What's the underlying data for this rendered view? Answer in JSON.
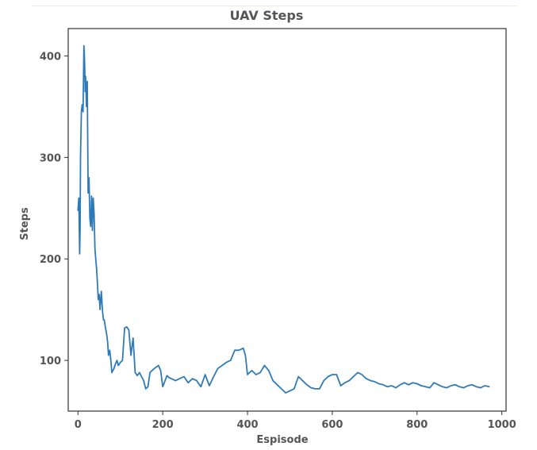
{
  "chart_data": {
    "type": "line",
    "title": "UAV Steps",
    "xlabel": "Espisode",
    "ylabel": "Steps",
    "xlim": [
      -23,
      1010
    ],
    "ylim": [
      50,
      427
    ],
    "grid": false,
    "xticks": [
      0,
      200,
      400,
      600,
      800,
      1000
    ],
    "yticks": [
      100,
      200,
      300,
      400
    ],
    "series": [
      {
        "color": "#2f7bb8",
        "x": [
          0,
          2,
          4,
          5,
          6,
          8,
          10,
          12,
          14,
          15,
          16,
          17,
          18,
          20,
          22,
          24,
          26,
          28,
          30,
          32,
          34,
          36,
          38,
          40,
          42,
          44,
          46,
          48,
          50,
          52,
          55,
          58,
          60,
          62,
          65,
          68,
          70,
          72,
          75,
          78,
          80,
          85,
          88,
          92,
          95,
          100,
          105,
          110,
          115,
          120,
          125,
          130,
          135,
          140,
          145,
          150,
          155,
          158,
          160,
          165,
          170,
          180,
          190,
          195,
          200,
          210,
          215,
          220,
          230,
          240,
          250,
          260,
          270,
          280,
          290,
          300,
          310,
          320,
          330,
          340,
          350,
          360,
          370,
          380,
          390,
          395,
          400,
          405,
          410,
          415,
          420,
          430,
          440,
          450,
          460,
          470,
          480,
          490,
          500,
          510,
          520,
          530,
          540,
          550,
          560,
          570,
          580,
          590,
          600,
          610,
          620,
          630,
          640,
          650,
          660,
          670,
          680,
          690,
          700,
          710,
          720,
          730,
          740,
          750,
          760,
          770,
          780,
          790,
          800,
          810,
          820,
          830,
          840,
          850,
          860,
          870,
          880,
          890,
          900,
          910,
          920,
          930,
          940,
          950,
          960,
          970
        ],
        "values": [
          248,
          260,
          205,
          230,
          300,
          345,
          352,
          345,
          410,
          402,
          390,
          365,
          380,
          350,
          375,
          265,
          280,
          240,
          232,
          262,
          228,
          260,
          245,
          210,
          200,
          190,
          175,
          160,
          165,
          150,
          168,
          148,
          140,
          140,
          132,
          125,
          118,
          105,
          110,
          98,
          88,
          92,
          96,
          100,
          95,
          98,
          100,
          132,
          133,
          130,
          105,
          122,
          88,
          85,
          88,
          84,
          80,
          75,
          72,
          74,
          88,
          92,
          95,
          90,
          74,
          85,
          83,
          82,
          80,
          82,
          84,
          78,
          82,
          80,
          74,
          86,
          75,
          84,
          92,
          95,
          98,
          100,
          110,
          110,
          112,
          105,
          86,
          88,
          90,
          88,
          86,
          88,
          95,
          90,
          80,
          76,
          72,
          68,
          70,
          72,
          84,
          80,
          76,
          73,
          72,
          72,
          80,
          84,
          86,
          86,
          75,
          78,
          80,
          84,
          88,
          86,
          82,
          80,
          79,
          77,
          76,
          74,
          75,
          73,
          76,
          78,
          76,
          78,
          77,
          75,
          74,
          73,
          78,
          76,
          74,
          73,
          75,
          76,
          74,
          73,
          75,
          76,
          74,
          73,
          75,
          74
        ]
      }
    ]
  }
}
